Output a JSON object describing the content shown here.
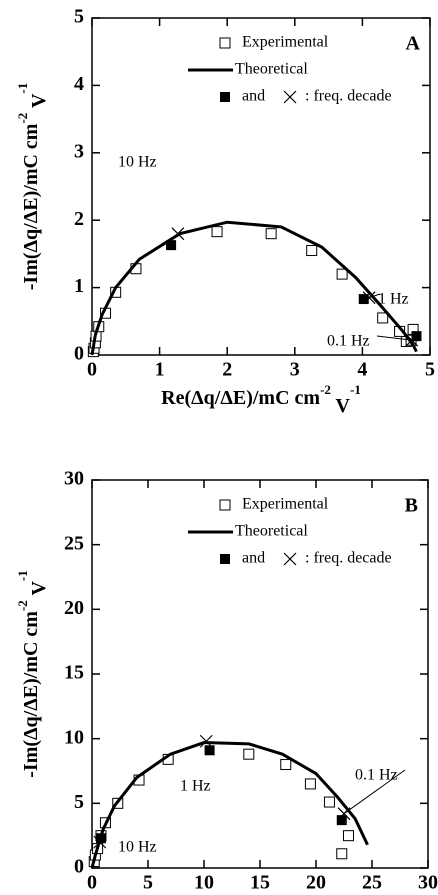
{
  "chart_data": [
    {
      "type": "scatter",
      "panel_label": "A",
      "xlabel": {
        "text": "Re(Δq/ΔE)/mC cm",
        "sup1": "-2",
        "mid": " V",
        "sup2": "-1"
      },
      "ylabel": {
        "text": "-Im(Δq/ΔE)/mC cm",
        "sup1": "-2",
        "mid": " V",
        "sup2": "-1"
      },
      "xlim": [
        0,
        5
      ],
      "ylim": [
        0,
        5
      ],
      "xticks": [
        0,
        1,
        2,
        3,
        4,
        5
      ],
      "yticks": [
        0,
        1,
        2,
        3,
        4,
        5
      ],
      "series": [
        {
          "name": "Experimental",
          "marker": "open-square",
          "color": "#000000",
          "x": [
            0.02,
            0.03,
            0.05,
            0.06,
            0.1,
            0.2,
            0.35,
            0.65,
            1.85,
            2.65,
            3.25,
            3.7,
            4.3,
            4.55,
            4.65,
            4.75,
            4.72
          ],
          "values": [
            0.05,
            0.1,
            0.18,
            0.28,
            0.42,
            0.62,
            0.93,
            1.28,
            1.83,
            1.8,
            1.55,
            1.2,
            0.55,
            0.35,
            0.2,
            0.38,
            0.22
          ]
        },
        {
          "name": "Theoretical",
          "marker": "line",
          "color": "#000000",
          "x": [
            0,
            0.05,
            0.15,
            0.35,
            0.7,
            1.3,
            2.0,
            2.8,
            3.4,
            3.9,
            4.3,
            4.6,
            4.75,
            4.8
          ],
          "values": [
            0,
            0.3,
            0.6,
            1.0,
            1.42,
            1.8,
            1.97,
            1.9,
            1.6,
            1.15,
            0.7,
            0.35,
            0.15,
            0.05
          ]
        },
        {
          "marker": "filled-square",
          "color": "#000000",
          "x": [
            1.17,
            4.02,
            4.8
          ],
          "values": [
            1.63,
            0.83,
            0.28
          ]
        },
        {
          "marker": "cross",
          "color": "#000000",
          "x": [
            1.27,
            4.1,
            4.73
          ],
          "values": [
            1.8,
            0.85,
            0.22
          ]
        }
      ],
      "legend_note": {
        "between": "and",
        "after": ": freq. decade"
      },
      "annotations": [
        "10 Hz",
        "1 Hz",
        "0.1 Hz"
      ]
    },
    {
      "type": "scatter",
      "panel_label": "B",
      "xlabel": {
        "text": "Re(Δq/ΔE)/mC cm",
        "sup1": "-2",
        "mid": " V",
        "sup2": "-1"
      },
      "ylabel": {
        "text": "-Im(Δq/ΔE)/mC cm",
        "sup1": "-2",
        "mid": " V",
        "sup2": "-1"
      },
      "xlim": [
        0,
        30
      ],
      "ylim": [
        0,
        30
      ],
      "xticks": [
        0,
        5,
        10,
        15,
        20,
        25,
        30
      ],
      "yticks": [
        0,
        5,
        10,
        15,
        20,
        25,
        30
      ],
      "series": [
        {
          "name": "Experimental",
          "marker": "open-square",
          "color": "#000000",
          "x": [
            0.2,
            0.3,
            0.5,
            0.8,
            1.2,
            2.3,
            4.2,
            6.8,
            14,
            17.3,
            19.5,
            21.2,
            22.3,
            22.9
          ],
          "values": [
            0.5,
            1.0,
            1.5,
            2.5,
            3.5,
            5.0,
            6.8,
            8.4,
            8.8,
            8.0,
            6.5,
            5.1,
            1.1,
            2.5
          ]
        },
        {
          "name": "Theoretical",
          "marker": "line",
          "color": "#000000",
          "x": [
            0,
            0.3,
            1,
            2,
            4,
            7,
            10,
            14,
            17,
            20,
            22,
            23.5,
            24.6
          ],
          "values": [
            0,
            1,
            3,
            4.8,
            7,
            8.8,
            9.7,
            9.6,
            8.8,
            7.3,
            5.4,
            3.8,
            1.8
          ]
        },
        {
          "marker": "filled-square",
          "color": "#000000",
          "x": [
            0.8,
            10.5,
            22.3
          ],
          "values": [
            2.3,
            9.1,
            3.7
          ]
        },
        {
          "marker": "cross",
          "color": "#000000",
          "x": [
            0.7,
            10.2,
            22.5
          ],
          "values": [
            2.0,
            9.8,
            4.2
          ]
        }
      ],
      "legend_note": {
        "between": "and",
        "after": ": freq. decade"
      },
      "annotations": [
        "1 Hz",
        "0.1 Hz",
        "10 Hz"
      ]
    }
  ]
}
